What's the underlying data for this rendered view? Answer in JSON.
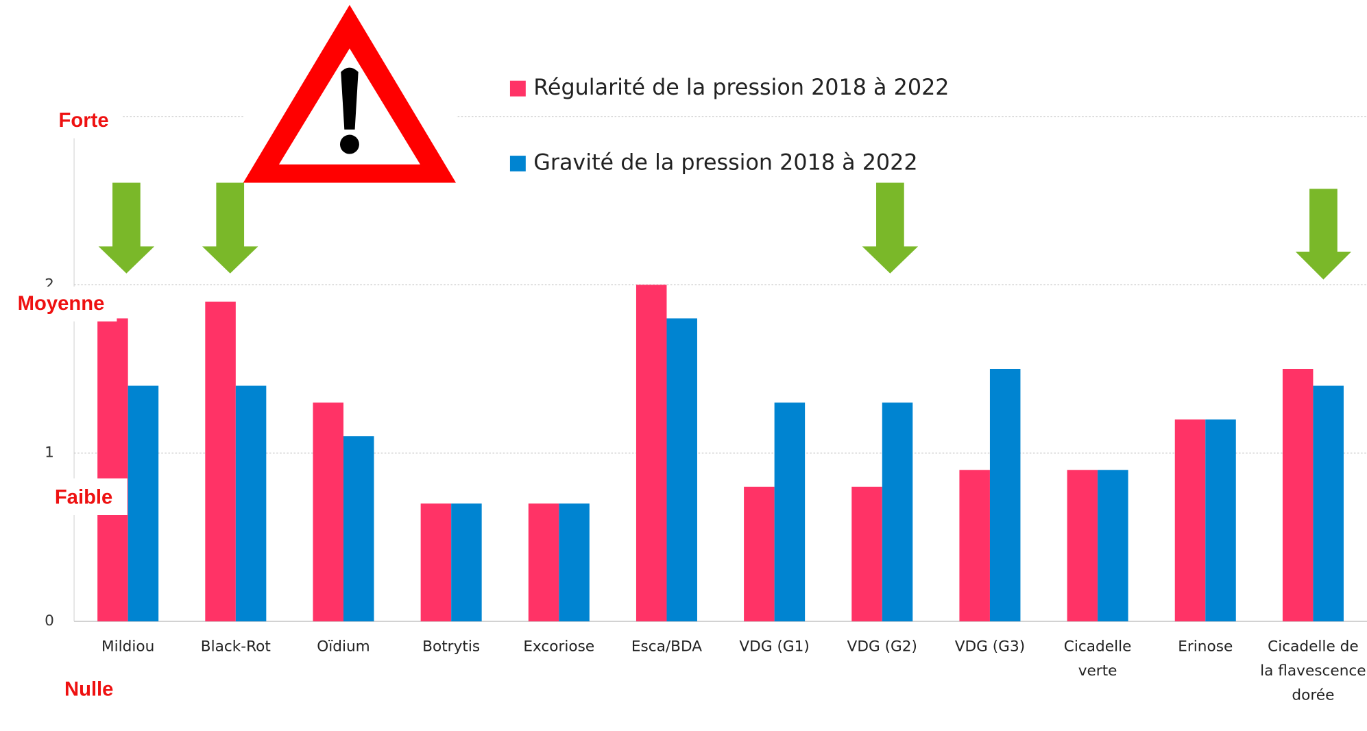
{
  "chart_data": {
    "type": "bar",
    "categories": [
      "Mildiou",
      "Black-Rot",
      "Oïdium",
      "Botrytis",
      "Excoriose",
      "Esca/BDA",
      "VDG (G1)",
      "VDG (G2)",
      "VDG (G3)",
      "Cicadelle verte",
      "Erinose",
      "Cicadelle de la flavescence dorée"
    ],
    "series": [
      {
        "name": "Régularité de la pression 2018 à 2022",
        "color": "#ff3366",
        "values": [
          1.8,
          1.9,
          1.3,
          0.7,
          0.7,
          2.0,
          0.8,
          0.8,
          0.9,
          0.9,
          1.2,
          1.5
        ]
      },
      {
        "name": "Gravité de la pression 2018 à 2022",
        "color": "#0084d1",
        "values": [
          1.4,
          1.4,
          1.1,
          0.7,
          0.7,
          1.8,
          1.3,
          1.3,
          1.5,
          0.9,
          1.2,
          1.4
        ]
      }
    ],
    "ylim": [
      0,
      3
    ],
    "yticks": [
      0,
      1,
      2,
      3
    ],
    "grid": true,
    "annotations": [
      "Forte",
      "Moyenne",
      "Faible",
      "Nulle"
    ]
  }
}
